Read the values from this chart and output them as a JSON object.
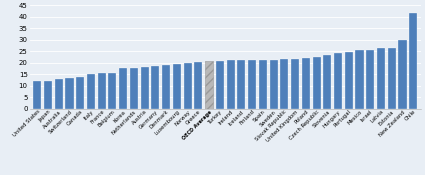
{
  "categories": [
    "United States",
    "Japan",
    "Australia",
    "Switzerland",
    "Canada",
    "Italy",
    "France",
    "Belgium",
    "Korea",
    "Netherlands",
    "Austria",
    "Germany",
    "Denmark",
    "Luxembourg",
    "Norway",
    "Greece",
    "OECD Average",
    "Turkey",
    "Ireland",
    "Iceland",
    "Finland",
    "Spain",
    "Sweden",
    "Slovak Republic",
    "United Kingdom",
    "Poland",
    "Czech Republic",
    "Slovenia",
    "Hungary",
    "Portugal",
    "Mexico",
    "Israel",
    "Latvia",
    "Estonia",
    "New Zealand",
    "Chile"
  ],
  "values": [
    12.0,
    12.2,
    13.0,
    13.5,
    13.8,
    15.0,
    15.5,
    15.5,
    17.5,
    17.5,
    18.0,
    18.5,
    19.0,
    19.5,
    20.0,
    20.2,
    20.5,
    20.5,
    21.0,
    21.0,
    21.0,
    21.2,
    21.3,
    21.5,
    21.5,
    22.2,
    22.3,
    23.5,
    24.0,
    24.5,
    25.5,
    25.5,
    26.5,
    26.5,
    30.0,
    41.5
  ],
  "bar_color": "#4e7fba",
  "oecd_bar_color": "#b8b8b8",
  "oecd_hatch": "////",
  "background_color": "#e8eef5",
  "plot_bg_color": "#e8eef5",
  "ylim": [
    0,
    45
  ],
  "yticks": [
    0,
    5,
    10,
    15,
    20,
    25,
    30,
    35,
    40,
    45
  ],
  "grid_color": "#ffffff",
  "tick_fontsize": 5.0,
  "xlabel_fontsize": 3.8,
  "bar_width": 0.75
}
